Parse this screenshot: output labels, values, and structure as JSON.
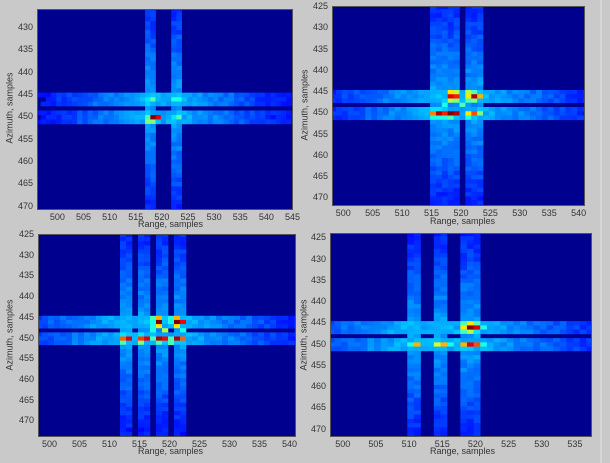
{
  "chart_data": [
    {
      "type": "heatmap",
      "title": "",
      "xlabel": "Range, samples",
      "ylabel": "Azimuth, samples",
      "xlim": [
        496,
        545
      ],
      "ylim": [
        471,
        426
      ],
      "xticks": [
        500,
        505,
        510,
        515,
        520,
        525,
        530,
        535,
        540,
        545
      ],
      "yticks": [
        430,
        435,
        440,
        445,
        450,
        455,
        460,
        465,
        470
      ],
      "colormap": "jet",
      "peaks": [
        {
          "x": 518,
          "y": 450,
          "v": 1.0
        },
        {
          "x": 519,
          "y": 450,
          "v": 0.9
        },
        {
          "x": 517,
          "y": 450,
          "v": 0.45
        },
        {
          "x": 517,
          "y": 451,
          "v": 0.5
        },
        {
          "x": 518,
          "y": 451,
          "v": 0.5
        },
        {
          "x": 518,
          "y": 446,
          "v": 0.45
        },
        {
          "x": 517,
          "y": 446,
          "v": 0.35
        },
        {
          "x": 522,
          "y": 446,
          "v": 0.4
        },
        {
          "x": 523,
          "y": 446,
          "v": 0.4
        },
        {
          "x": 522,
          "y": 450,
          "v": 0.35
        },
        {
          "x": 523,
          "y": 450,
          "v": 0.45
        }
      ],
      "sidelobe_cols": [
        517,
        518,
        522,
        523
      ],
      "sidelobe_rows": [
        450,
        446
      ]
    },
    {
      "type": "heatmap",
      "title": "",
      "xlabel": "Range, samples",
      "ylabel": "Azimuth, samples",
      "xlim": [
        498,
        541
      ],
      "ylim": [
        472,
        425
      ],
      "xticks": [
        500,
        505,
        510,
        515,
        520,
        525,
        530,
        535,
        540
      ],
      "yticks": [
        425,
        430,
        435,
        440,
        445,
        450,
        455,
        460,
        465,
        470
      ],
      "colormap": "jet",
      "peaks": [
        {
          "x": 515,
          "y": 450,
          "v": 0.75
        },
        {
          "x": 516,
          "y": 450,
          "v": 0.95
        },
        {
          "x": 517,
          "y": 450,
          "v": 0.85
        },
        {
          "x": 518,
          "y": 450,
          "v": 1.0
        },
        {
          "x": 519,
          "y": 450,
          "v": 0.95
        },
        {
          "x": 521,
          "y": 450,
          "v": 0.65
        },
        {
          "x": 522,
          "y": 450,
          "v": 0.8
        },
        {
          "x": 523,
          "y": 450,
          "v": 0.5
        },
        {
          "x": 515,
          "y": 451,
          "v": 0.4
        },
        {
          "x": 516,
          "y": 451,
          "v": 0.4
        },
        {
          "x": 517,
          "y": 451,
          "v": 0.4
        },
        {
          "x": 518,
          "y": 451,
          "v": 0.45
        },
        {
          "x": 521,
          "y": 451,
          "v": 0.4
        },
        {
          "x": 515,
          "y": 449,
          "v": 0.35
        },
        {
          "x": 516,
          "y": 449,
          "v": 0.35
        },
        {
          "x": 517,
          "y": 448,
          "v": 0.4
        },
        {
          "x": 520,
          "y": 448,
          "v": 0.45
        },
        {
          "x": 518,
          "y": 445,
          "v": 0.65
        },
        {
          "x": 519,
          "y": 445,
          "v": 0.55
        },
        {
          "x": 518,
          "y": 446,
          "v": 0.9
        },
        {
          "x": 519,
          "y": 446,
          "v": 0.85
        },
        {
          "x": 518,
          "y": 447,
          "v": 0.55
        },
        {
          "x": 519,
          "y": 447,
          "v": 0.5
        },
        {
          "x": 521,
          "y": 445,
          "v": 0.55
        },
        {
          "x": 522,
          "y": 445,
          "v": 0.45
        },
        {
          "x": 521,
          "y": 446,
          "v": 0.65
        },
        {
          "x": 522,
          "y": 446,
          "v": 0.95
        },
        {
          "x": 523,
          "y": 446,
          "v": 0.7
        },
        {
          "x": 521,
          "y": 447,
          "v": 0.45
        },
        {
          "x": 522,
          "y": 447,
          "v": 0.5
        }
      ],
      "sidelobe_cols": [
        515,
        516,
        517,
        518,
        519,
        521,
        522,
        523
      ],
      "sidelobe_rows": [
        450,
        446
      ]
    },
    {
      "type": "heatmap",
      "title": "",
      "xlabel": "Range, samples",
      "ylabel": "Azimuth, samples",
      "xlim": [
        498,
        541
      ],
      "ylim": [
        474,
        425
      ],
      "xticks": [
        500,
        505,
        510,
        515,
        520,
        525,
        530,
        535,
        540
      ],
      "yticks": [
        425,
        430,
        435,
        440,
        445,
        450,
        455,
        460,
        465,
        470
      ],
      "colormap": "jet",
      "peaks": [
        {
          "x": 512,
          "y": 450,
          "v": 0.78
        },
        {
          "x": 513,
          "y": 450,
          "v": 0.9
        },
        {
          "x": 515,
          "y": 450,
          "v": 0.82
        },
        {
          "x": 516,
          "y": 450,
          "v": 0.9
        },
        {
          "x": 518,
          "y": 450,
          "v": 0.95
        },
        {
          "x": 519,
          "y": 450,
          "v": 0.88
        },
        {
          "x": 521,
          "y": 450,
          "v": 0.95
        },
        {
          "x": 522,
          "y": 450,
          "v": 0.78
        },
        {
          "x": 517,
          "y": 450,
          "v": 0.45
        },
        {
          "x": 520,
          "y": 450,
          "v": 0.45
        },
        {
          "x": 512,
          "y": 451,
          "v": 0.45
        },
        {
          "x": 515,
          "y": 451,
          "v": 0.5
        },
        {
          "x": 518,
          "y": 451,
          "v": 0.45
        },
        {
          "x": 520,
          "y": 451,
          "v": 0.45
        },
        {
          "x": 512,
          "y": 449,
          "v": 0.35
        },
        {
          "x": 515,
          "y": 449,
          "v": 0.35
        },
        {
          "x": 517,
          "y": 448,
          "v": 0.4
        },
        {
          "x": 519,
          "y": 448,
          "v": 0.55
        },
        {
          "x": 522,
          "y": 448,
          "v": 0.4
        },
        {
          "x": 517,
          "y": 445,
          "v": 0.45
        },
        {
          "x": 518,
          "y": 445,
          "v": 0.7
        },
        {
          "x": 518,
          "y": 446,
          "v": 1.0
        },
        {
          "x": 518,
          "y": 447,
          "v": 0.65
        },
        {
          "x": 521,
          "y": 445,
          "v": 0.7
        },
        {
          "x": 521,
          "y": 446,
          "v": 1.0
        },
        {
          "x": 522,
          "y": 446,
          "v": 0.88
        },
        {
          "x": 521,
          "y": 447,
          "v": 0.65
        },
        {
          "x": 520,
          "y": 445,
          "v": 0.4
        },
        {
          "x": 520,
          "y": 446,
          "v": 0.4
        },
        {
          "x": 517,
          "y": 446,
          "v": 0.4
        },
        {
          "x": 517,
          "y": 447,
          "v": 0.4
        }
      ],
      "sidelobe_cols": [
        512,
        513,
        515,
        516,
        518,
        519,
        521,
        522
      ],
      "sidelobe_rows": [
        450,
        446
      ]
    },
    {
      "type": "heatmap",
      "title": "",
      "xlabel": "Range, samples",
      "ylabel": "Azimuth, samples",
      "xlim": [
        498,
        537.5
      ],
      "ylim": [
        472,
        424
      ],
      "xticks": [
        500,
        505,
        510,
        515,
        520,
        525,
        530,
        535
      ],
      "yticks": [
        425,
        430,
        435,
        440,
        445,
        450,
        455,
        460,
        465,
        470
      ],
      "colormap": "jet",
      "peaks": [
        {
          "x": 510,
          "y": 450,
          "v": 0.4
        },
        {
          "x": 511,
          "y": 450,
          "v": 0.7
        },
        {
          "x": 514,
          "y": 450,
          "v": 0.58
        },
        {
          "x": 515,
          "y": 450,
          "v": 0.7
        },
        {
          "x": 516,
          "y": 450,
          "v": 0.4
        },
        {
          "x": 518,
          "y": 450,
          "v": 0.7
        },
        {
          "x": 519,
          "y": 450,
          "v": 0.9
        },
        {
          "x": 520,
          "y": 450,
          "v": 0.8
        },
        {
          "x": 521,
          "y": 450,
          "v": 0.4
        },
        {
          "x": 517,
          "y": 450,
          "v": 0.3
        },
        {
          "x": 518,
          "y": 445,
          "v": 0.45
        },
        {
          "x": 519,
          "y": 445,
          "v": 0.65
        },
        {
          "x": 520,
          "y": 445,
          "v": 0.45
        },
        {
          "x": 518,
          "y": 446,
          "v": 0.65
        },
        {
          "x": 519,
          "y": 446,
          "v": 1.0
        },
        {
          "x": 520,
          "y": 446,
          "v": 0.9
        },
        {
          "x": 521,
          "y": 446,
          "v": 0.4
        },
        {
          "x": 518,
          "y": 447,
          "v": 0.45
        },
        {
          "x": 519,
          "y": 447,
          "v": 0.55
        },
        {
          "x": 520,
          "y": 447,
          "v": 0.35
        }
      ],
      "sidelobe_cols": [
        510,
        511,
        514,
        515,
        518,
        519,
        520
      ],
      "sidelobe_rows": [
        450,
        446
      ]
    }
  ],
  "panels": [
    {
      "xlabel": "Range, samples",
      "ylabel": "Azimuth, samples"
    },
    {
      "xlabel": "Range, samples",
      "ylabel": "Azimuth, samples"
    },
    {
      "xlabel": "Range, samples",
      "ylabel": "Azimuth, samples"
    },
    {
      "xlabel": "Range, samples",
      "ylabel": "Azimuth, samples"
    }
  ]
}
